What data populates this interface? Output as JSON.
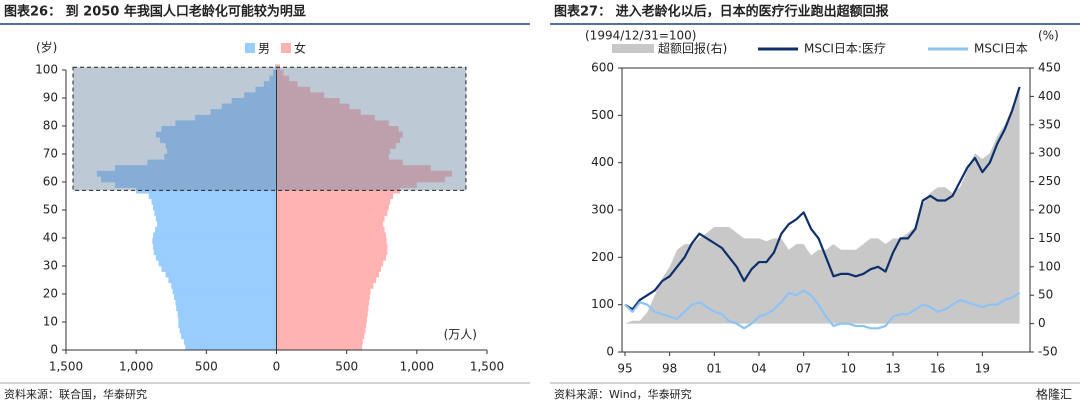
{
  "chart_data": [
    {
      "type": "pyramid",
      "title": "图表26：  到 2050 年我国人口老龄化可能较为明显",
      "ylabel": "(岁)",
      "xlabel": "(万人)",
      "source": "资料来源：联合国，华泰研究",
      "ages": [
        0,
        2,
        4,
        6,
        8,
        10,
        12,
        14,
        16,
        18,
        20,
        22,
        24,
        26,
        28,
        30,
        32,
        34,
        36,
        38,
        40,
        42,
        44,
        46,
        48,
        50,
        52,
        54,
        56,
        58,
        60,
        62,
        64,
        66,
        68,
        70,
        72,
        74,
        76,
        78,
        80,
        82,
        84,
        86,
        88,
        90,
        92,
        94,
        96,
        98,
        100
      ],
      "series": [
        {
          "name": "男",
          "color": "#99ccff",
          "values": [
            650,
            660,
            680,
            690,
            700,
            700,
            705,
            715,
            720,
            730,
            740,
            750,
            770,
            790,
            820,
            840,
            860,
            875,
            880,
            885,
            880,
            865,
            850,
            860,
            870,
            880,
            890,
            910,
            1000,
            1150,
            1250,
            1280,
            1150,
            920,
            800,
            780,
            790,
            830,
            860,
            820,
            720,
            580,
            470,
            390,
            320,
            230,
            150,
            90,
            50,
            25,
            10
          ]
        },
        {
          "name": "女",
          "color": "#ffb3b3",
          "values": [
            610,
            615,
            625,
            635,
            640,
            645,
            650,
            655,
            660,
            665,
            670,
            690,
            710,
            730,
            745,
            760,
            780,
            790,
            790,
            785,
            780,
            770,
            760,
            770,
            790,
            800,
            810,
            830,
            880,
            1000,
            1200,
            1250,
            1100,
            900,
            800,
            810,
            850,
            880,
            900,
            870,
            800,
            700,
            600,
            520,
            450,
            340,
            240,
            150,
            90,
            50,
            25
          ]
        }
      ],
      "xlim": [
        -1500,
        1500
      ],
      "xticks": [
        {
          "value": -1500,
          "label": "1,500"
        },
        {
          "value": -1000,
          "label": "1,000"
        },
        {
          "value": -500,
          "label": "500"
        },
        0,
        500,
        {
          "value": 1000,
          "label": "1,000"
        },
        {
          "value": 1500,
          "label": "1,500"
        }
      ],
      "ylim": [
        0,
        100
      ],
      "yticks": [
        0,
        10,
        20,
        30,
        40,
        50,
        60,
        70,
        80,
        90,
        100
      ],
      "highlight": {
        "xlim": [
          -1450,
          1350
        ],
        "ylim": [
          57,
          101
        ],
        "color": "#6e87a5"
      }
    },
    {
      "type": "line",
      "title": "图表27：  进入老龄化以后，日本的医疗行业跑出超额回报",
      "annotation": "(1994/12/31=100)",
      "y2label": "(%)",
      "source": "资料来源：Wind，华泰研究",
      "watermark": "格隆汇",
      "x": [
        1995,
        1995.5,
        1996,
        1996.5,
        1997,
        1997.5,
        1998,
        1998.5,
        1999,
        1999.5,
        2000,
        2000.5,
        2001,
        2001.5,
        2002,
        2002.5,
        2003,
        2003.5,
        2004,
        2004.5,
        2005,
        2005.5,
        2006,
        2006.5,
        2007,
        2007.5,
        2008,
        2008.5,
        2009,
        2009.5,
        2010,
        2010.5,
        2011,
        2011.5,
        2012,
        2012.5,
        2013,
        2013.5,
        2014,
        2014.5,
        2015,
        2015.5,
        2016,
        2016.5,
        2017,
        2017.5,
        2018,
        2018.5,
        2019,
        2019.5,
        2020,
        2020.5,
        2021,
        2021.5
      ],
      "series": [
        {
          "name": "超额回报(右)",
          "color": "#c8c8c8",
          "axis": "y2",
          "area": true,
          "values": [
            0,
            5,
            5,
            20,
            50,
            80,
            100,
            130,
            140,
            140,
            150,
            160,
            170,
            170,
            170,
            160,
            150,
            150,
            150,
            145,
            150,
            150,
            130,
            140,
            140,
            120,
            130,
            130,
            140,
            130,
            130,
            130,
            140,
            150,
            150,
            140,
            150,
            150,
            160,
            170,
            210,
            230,
            240,
            240,
            230,
            240,
            270,
            300,
            290,
            300,
            330,
            350,
            380,
            410
          ]
        },
        {
          "name": "MSCI日本:医疗",
          "color": "#0f2f6b",
          "values": [
            100,
            90,
            110,
            120,
            130,
            150,
            160,
            180,
            200,
            230,
            250,
            240,
            230,
            220,
            200,
            180,
            150,
            175,
            190,
            190,
            210,
            250,
            270,
            280,
            295,
            260,
            240,
            200,
            160,
            165,
            165,
            160,
            165,
            175,
            180,
            170,
            210,
            240,
            240,
            260,
            320,
            330,
            320,
            320,
            330,
            360,
            390,
            410,
            380,
            400,
            440,
            470,
            510,
            560
          ]
        },
        {
          "name": "MSCI日本",
          "color": "#8fc3f5",
          "values": [
            100,
            85,
            105,
            100,
            85,
            80,
            75,
            70,
            85,
            100,
            105,
            95,
            85,
            80,
            65,
            60,
            50,
            60,
            75,
            80,
            90,
            105,
            125,
            120,
            130,
            120,
            100,
            75,
            55,
            60,
            60,
            55,
            55,
            50,
            50,
            55,
            75,
            80,
            80,
            90,
            100,
            95,
            85,
            90,
            100,
            110,
            105,
            100,
            95,
            100,
            100,
            110,
            115,
            125
          ]
        }
      ],
      "xlim": [
        1994.8,
        2022.2
      ],
      "xticks": [
        {
          "value": 1995,
          "label": "95"
        },
        {
          "value": 1998,
          "label": "98"
        },
        {
          "value": 2001,
          "label": "01"
        },
        {
          "value": 2004,
          "label": "04"
        },
        {
          "value": 2007,
          "label": "07"
        },
        {
          "value": 2010,
          "label": "10"
        },
        {
          "value": 2013,
          "label": "13"
        },
        {
          "value": 2016,
          "label": "16"
        },
        {
          "value": 2019,
          "label": "19"
        }
      ],
      "ylim": [
        0,
        600
      ],
      "yticks": [
        0,
        100,
        200,
        300,
        400,
        500,
        600
      ],
      "y2lim": [
        -50,
        450
      ],
      "y2ticks": [
        -50,
        0,
        50,
        100,
        150,
        200,
        250,
        300,
        350,
        400,
        450
      ]
    }
  ]
}
